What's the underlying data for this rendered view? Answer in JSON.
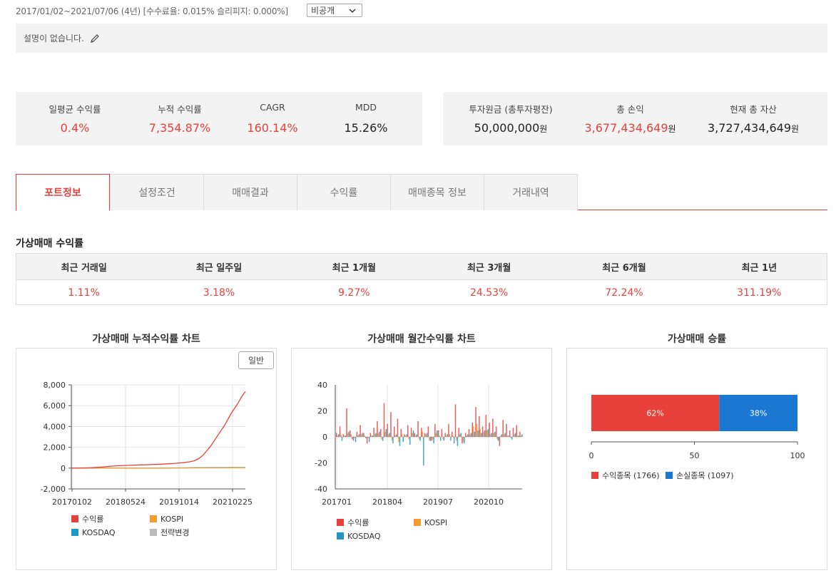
{
  "header": {
    "meta": "2017/01/02~2021/07/06 (4년) [수수료율: 0.015% 슬리피지: 0.000%]",
    "visibility": "비공개",
    "description": "설명이 없습니다."
  },
  "summary": {
    "left": [
      {
        "label": "일평균 수익률",
        "value": "0.4%",
        "color": "#e8413b"
      },
      {
        "label": "누적 수익률",
        "value": "7,354.87%",
        "color": "#e8413b"
      },
      {
        "label": "CAGR",
        "value": "160.14%",
        "color": "#e8413b"
      },
      {
        "label": "MDD",
        "value": "15.26%",
        "color": "#222222"
      }
    ],
    "right": [
      {
        "label": "투자원금 (총투자평잔)",
        "value": "50,000,000",
        "unit": "원",
        "color": "#222222"
      },
      {
        "label": "총 손익",
        "value": "3,677,434,649",
        "unit": "원",
        "color": "#e8413b"
      },
      {
        "label": "현재 총 자산",
        "value": "3,727,434,649",
        "unit": "원",
        "color": "#222222"
      }
    ]
  },
  "tabs": [
    {
      "label": "포트정보",
      "active": true
    },
    {
      "label": "설정조건",
      "active": false
    },
    {
      "label": "매매결과",
      "active": false
    },
    {
      "label": "수익률",
      "active": false
    },
    {
      "label": "매매종목 정보",
      "active": false
    },
    {
      "label": "거래내역",
      "active": false
    }
  ],
  "returns_section": {
    "title": "가상매매 수익률",
    "headers": [
      "최근 거래일",
      "최근 일주일",
      "최근 1개월",
      "최근 3개월",
      "최근 6개월",
      "최근 1년"
    ],
    "values": [
      "1.11%",
      "3.18%",
      "9.27%",
      "24.53%",
      "72.24%",
      "311.19%"
    ]
  },
  "colors": {
    "accent": "#e8413b",
    "kospi": "#f39c2d",
    "kosdaq": "#2196c9",
    "strategy": "#bbbbbb",
    "loss": "#1a77d2"
  },
  "chart_data": [
    {
      "type": "line",
      "title": "가상매매 누적수익률 차트",
      "mode_button": "일반",
      "ylim": [
        -2000,
        8000
      ],
      "yticks": [
        "8,000",
        "6,000",
        "4,000",
        "2,000",
        "0",
        "-2,000"
      ],
      "xticks": [
        "20170102",
        "20180524",
        "20191014",
        "20210225"
      ],
      "legend": [
        "수익률",
        "KOSPI",
        "KOSDAQ",
        "전략변경"
      ],
      "series": [
        {
          "name": "수익률",
          "points": [
            [
              0,
              0
            ],
            [
              4,
              10
            ],
            [
              8,
              20
            ],
            [
              12,
              40
            ],
            [
              16,
              80
            ],
            [
              20,
              140
            ],
            [
              24,
              190
            ],
            [
              28,
              230
            ],
            [
              32,
              260
            ],
            [
              36,
              290
            ],
            [
              40,
              310
            ],
            [
              44,
              330
            ],
            [
              48,
              350
            ],
            [
              52,
              380
            ],
            [
              56,
              420
            ],
            [
              60,
              460
            ],
            [
              64,
              520
            ],
            [
              68,
              600
            ],
            [
              70,
              680
            ],
            [
              72,
              800
            ],
            [
              74,
              1000
            ],
            [
              76,
              1300
            ],
            [
              78,
              1700
            ],
            [
              80,
              2100
            ],
            [
              82,
              2600
            ],
            [
              84,
              3100
            ],
            [
              86,
              3600
            ],
            [
              88,
              4100
            ],
            [
              90,
              4700
            ],
            [
              92,
              5300
            ],
            [
              94,
              5800
            ],
            [
              96,
              6300
            ],
            [
              98,
              6900
            ],
            [
              100,
              7355
            ]
          ]
        },
        {
          "name": "KOSPI",
          "points": [
            [
              0,
              0
            ],
            [
              25,
              10
            ],
            [
              50,
              15
            ],
            [
              75,
              30
            ],
            [
              100,
              45
            ]
          ]
        },
        {
          "name": "KOSDAQ",
          "points": [
            [
              0,
              0
            ],
            [
              25,
              5
            ],
            [
              50,
              0
            ],
            [
              75,
              40
            ],
            [
              100,
              60
            ]
          ]
        }
      ]
    },
    {
      "type": "bar",
      "title": "가상매매 월간수익률 차트",
      "ylim": [
        -40,
        40
      ],
      "yticks": [
        "40",
        "20",
        "0",
        "-20",
        "-40"
      ],
      "xticks": [
        "201701",
        "201804",
        "201907",
        "202010"
      ],
      "legend": [
        "수익률",
        "KOSPI",
        "KOSDAQ"
      ],
      "months": 55,
      "series": [
        {
          "name": "수익률",
          "values": [
            3,
            8,
            2,
            22,
            5,
            -3,
            4,
            9,
            3,
            -5,
            3,
            7,
            12,
            6,
            26,
            10,
            19,
            8,
            14,
            6,
            2,
            9,
            7,
            3,
            12,
            7,
            3,
            8,
            -3,
            10,
            5,
            6,
            3,
            10,
            4,
            25,
            7,
            -5,
            3,
            6,
            11,
            23,
            16,
            8,
            17,
            11,
            14,
            8,
            -7,
            13,
            10,
            5,
            7,
            9,
            4
          ]
        },
        {
          "name": "KOSPI",
          "values": [
            1,
            2,
            1,
            3,
            2,
            -1,
            1,
            2,
            1,
            -1,
            1,
            2,
            3,
            -2,
            4,
            2,
            -3,
            1,
            -4,
            2,
            1,
            -2,
            3,
            1,
            -2,
            4,
            2,
            -3,
            -2,
            3,
            1,
            -2,
            1,
            2,
            1,
            -3,
            2,
            -4,
            1,
            2,
            8,
            10,
            6,
            4,
            5,
            2,
            3,
            -2,
            1,
            2,
            1,
            -1,
            2,
            1,
            1
          ]
        },
        {
          "name": "KOSDAQ",
          "values": [
            2,
            -3,
            1,
            4,
            -2,
            -4,
            2,
            3,
            -1,
            -4,
            1,
            3,
            4,
            -3,
            6,
            3,
            -5,
            2,
            -7,
            -4,
            2,
            -6,
            5,
            2,
            -3,
            -22,
            3,
            -3,
            -5,
            5,
            -3,
            -3,
            2,
            -3,
            -5,
            -7,
            3,
            -5,
            2,
            3,
            4,
            5,
            3,
            5,
            6,
            3,
            4,
            -3,
            2,
            3,
            1,
            -2,
            3,
            1,
            2
          ]
        }
      ]
    },
    {
      "type": "bar",
      "title": "가상매매 승률",
      "xlim": [
        0,
        100
      ],
      "xticks": [
        "0",
        "50",
        "100"
      ],
      "segments": [
        {
          "name": "수익종목",
          "count": 1766,
          "percent": 62,
          "label": "62%"
        },
        {
          "name": "손실종목",
          "count": 1097,
          "percent": 38,
          "label": "38%"
        }
      ],
      "legend": [
        "수익종목 (1766)",
        "손실종목 (1097)"
      ]
    }
  ]
}
